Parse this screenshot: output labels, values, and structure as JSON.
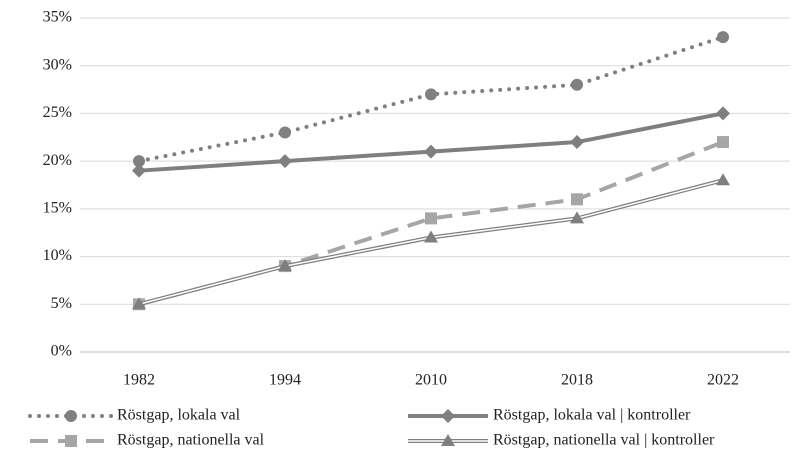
{
  "chart_data": {
    "type": "line",
    "categories": [
      "1982",
      "1994",
      "2010",
      "2018",
      "2022"
    ],
    "series": [
      {
        "name": "Röstgap, lokala val",
        "color": "#808080",
        "line_style": "dotted",
        "marker": "circle",
        "values": [
          20,
          23,
          27,
          28,
          33
        ]
      },
      {
        "name": "Röstgap, lokala val | kontroller",
        "color": "#7f7f7f",
        "line_style": "solid",
        "marker": "diamond",
        "values": [
          19,
          20,
          21,
          22,
          25
        ]
      },
      {
        "name": "Röstgap, nationella val",
        "color": "#a6a6a6",
        "line_style": "dashed",
        "marker": "square",
        "values": [
          5,
          9,
          14,
          16,
          22
        ]
      },
      {
        "name": "Röstgap, nationella val | kontroller",
        "color": "#7f7f7f",
        "line_style": "double",
        "marker": "triangle",
        "values": [
          5,
          9,
          12,
          14,
          18
        ]
      }
    ],
    "ylim": [
      0,
      35
    ],
    "yticks": [
      {
        "value": 0,
        "label": "0%"
      },
      {
        "value": 5,
        "label": "5%"
      },
      {
        "value": 10,
        "label": "10%"
      },
      {
        "value": 15,
        "label": "15%"
      },
      {
        "value": 20,
        "label": "20%"
      },
      {
        "value": 25,
        "label": "25%"
      },
      {
        "value": 30,
        "label": "30%"
      },
      {
        "value": 35,
        "label": "35%"
      }
    ],
    "grid": true
  }
}
